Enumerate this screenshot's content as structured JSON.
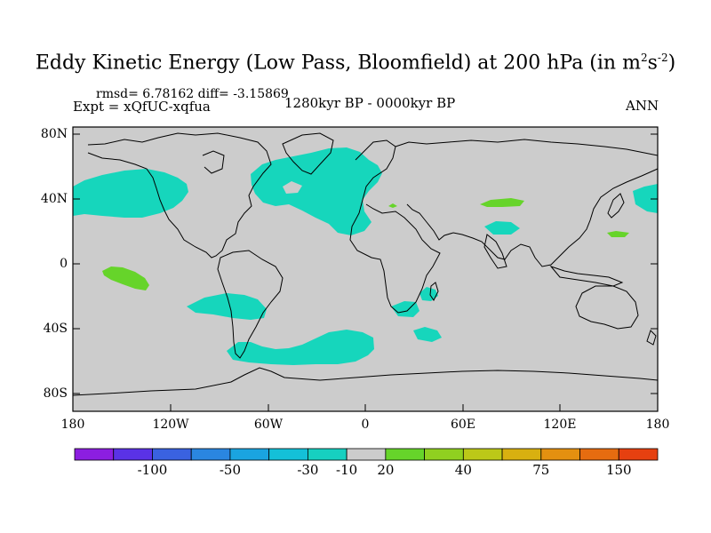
{
  "title": {
    "main": "Eddy Kinetic Energy (Low Pass, Bloomfield) at 200 hPa (in m",
    "sup1": "2",
    "mid": "s",
    "sup2": "-2",
    "end": ")"
  },
  "stats": "rmsd= 6.78162 diff= -3.15869",
  "expt": "Expt = xQfUC-xqfua",
  "period": "1280kyr BP - 0000kyr BP",
  "season": "ANN",
  "lat_labels": [
    "80N",
    "40N",
    "0",
    "40S",
    "80S"
  ],
  "lon_labels": [
    "180",
    "120W",
    "60W",
    "0",
    "60E",
    "120E",
    "180"
  ],
  "colorbar": {
    "colors": [
      "#8c1ee0",
      "#5a32e6",
      "#3a62e0",
      "#2a86e0",
      "#1aa4e0",
      "#14c0d8",
      "#16d0c0",
      "#cccccc",
      "#66d42a",
      "#90d020",
      "#bcc818",
      "#d8b010",
      "#e49010",
      "#e66c10",
      "#e64010"
    ],
    "labels": [
      "-100",
      "-50",
      "-30",
      "-10",
      "20",
      "40",
      "75",
      "150"
    ]
  },
  "colors": {
    "ocean_land": "#cccccc",
    "negative": "#16d6bc",
    "positive": "#66d42a"
  }
}
